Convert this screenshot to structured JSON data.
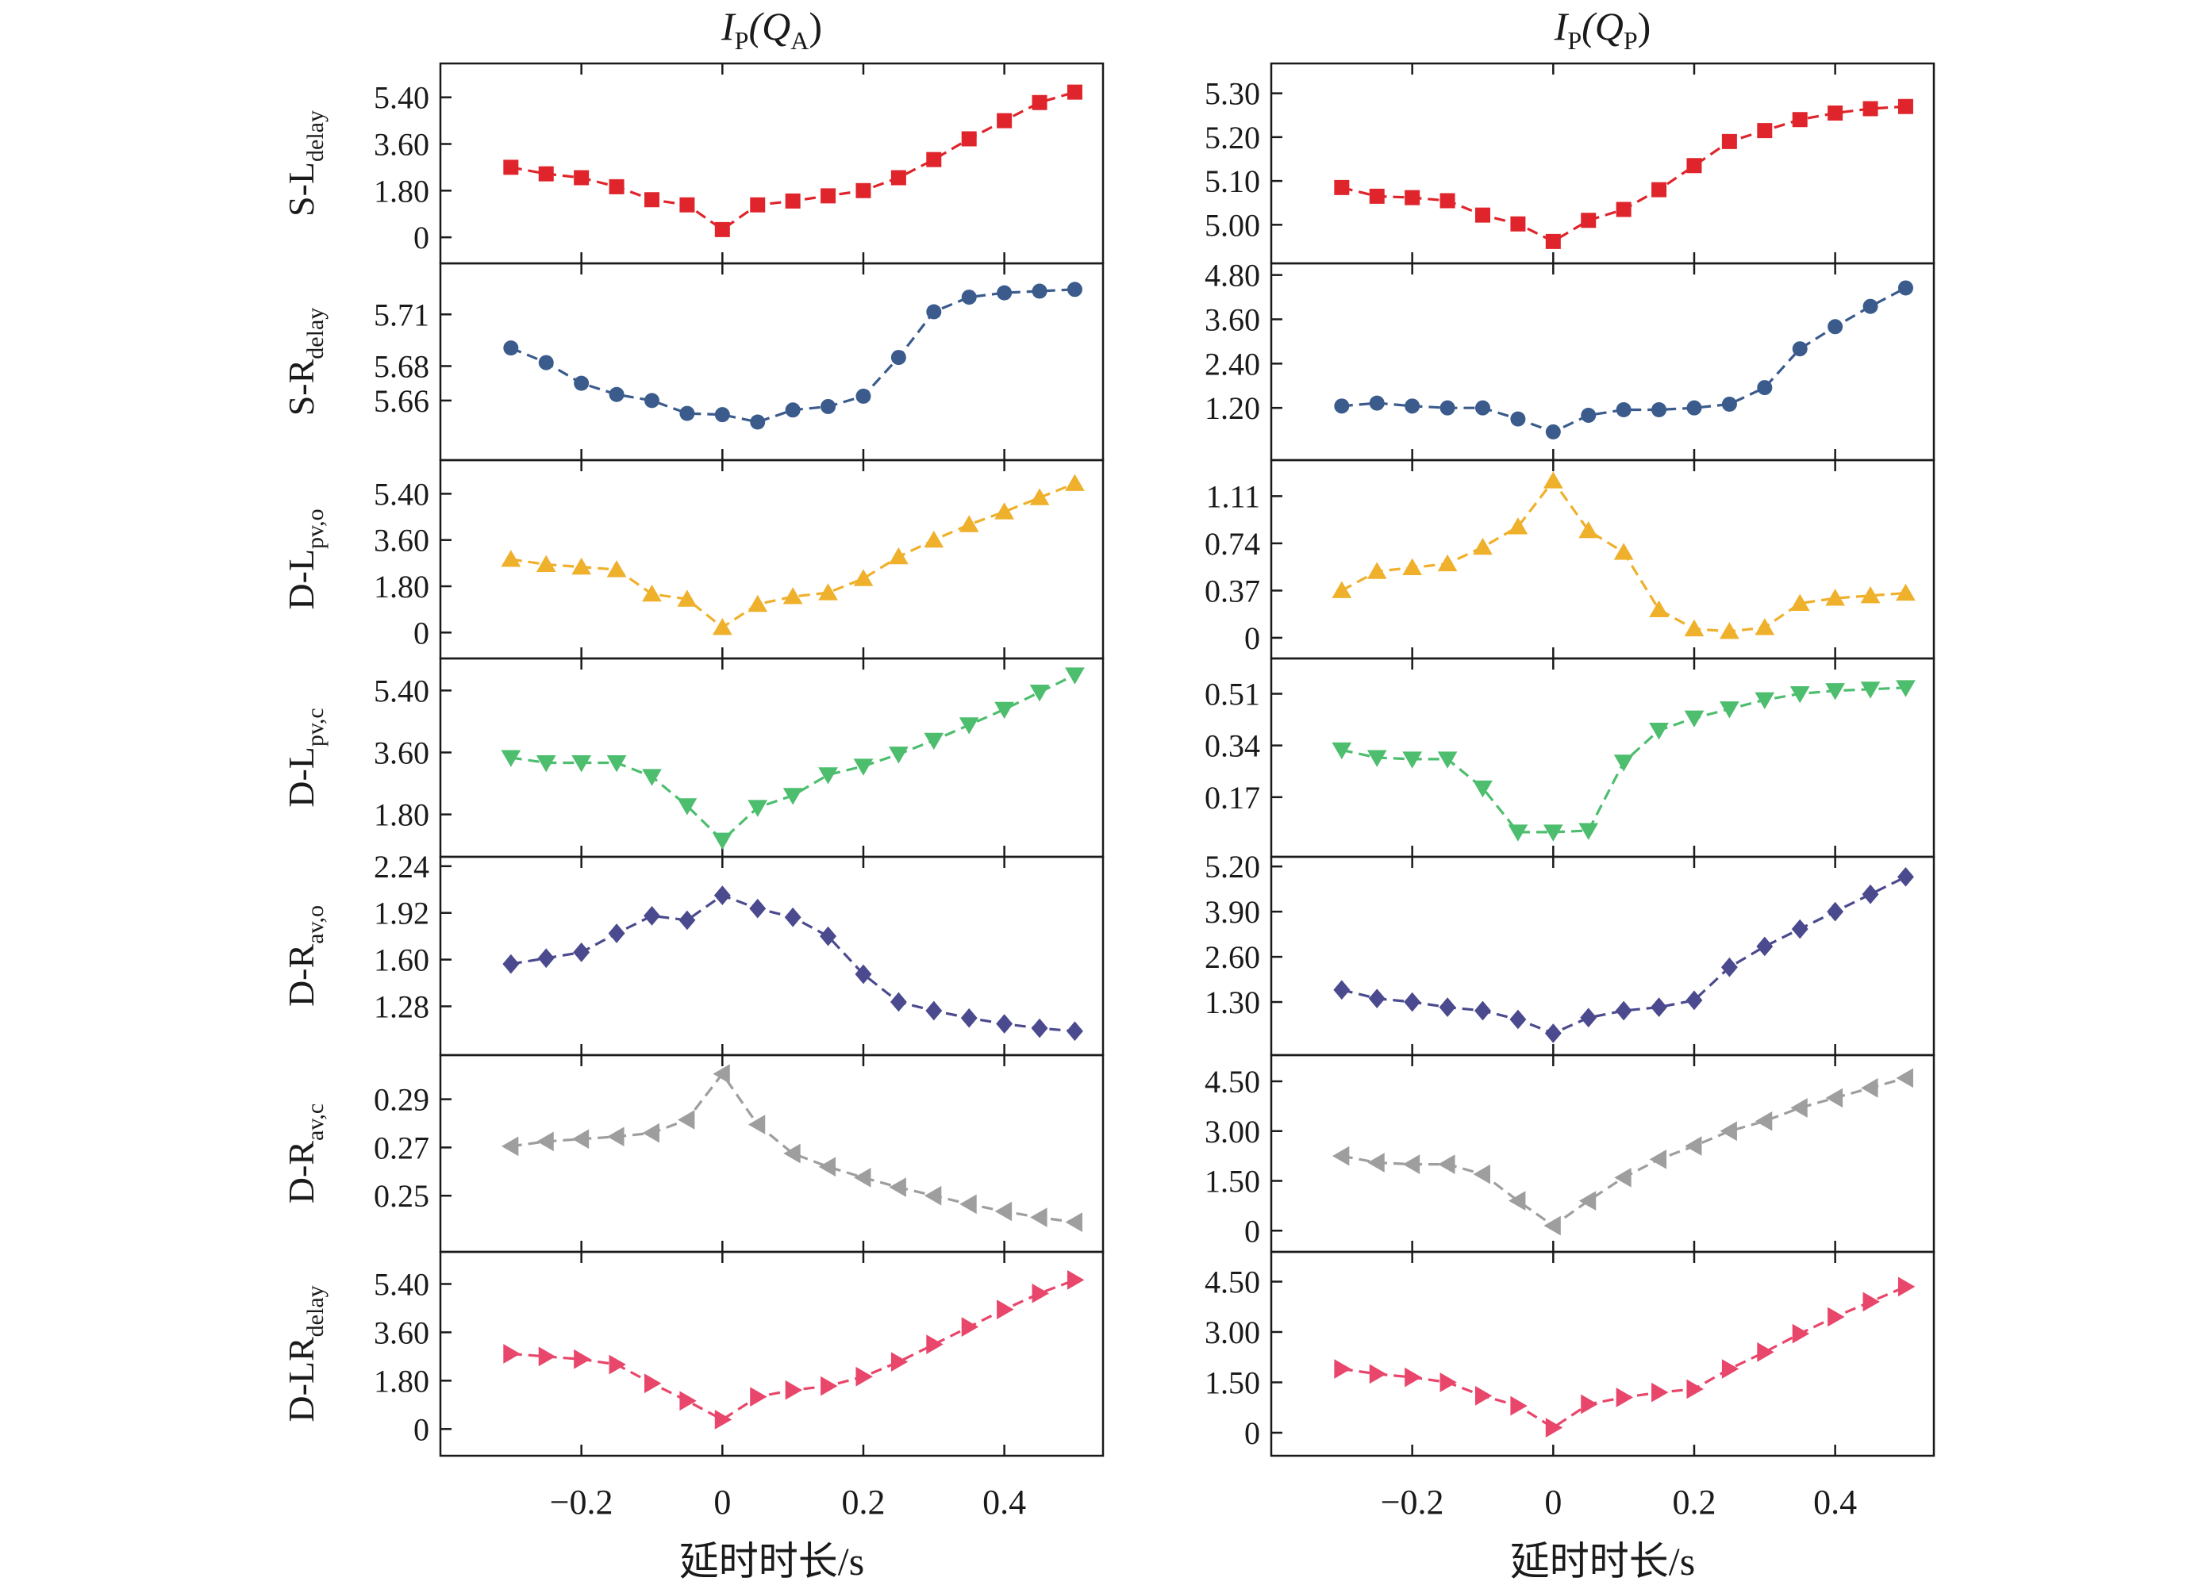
{
  "figure": {
    "columns": [
      {
        "title_main": "I",
        "title_sub": "P",
        "title_arg": "(Q",
        "title_arg_sub": "A",
        "title_close": ")"
      },
      {
        "title_main": "I",
        "title_sub": "P",
        "title_arg": "(Q",
        "title_arg_sub": "P",
        "title_close": ")"
      }
    ],
    "rows": [
      {
        "label": "S-L",
        "sub": "delay",
        "color": "#e0242b",
        "marker": "square"
      },
      {
        "label": "S-R",
        "sub": "delay",
        "color": "#3a5b8c",
        "marker": "circle"
      },
      {
        "label": "D-L",
        "sub": "pv,o",
        "color": "#efb02b",
        "marker": "triangle-up"
      },
      {
        "label": "D-L",
        "sub": "pv,c",
        "color": "#4dbd6e",
        "marker": "triangle-down"
      },
      {
        "label": "D-R",
        "sub": "av,o",
        "color": "#4b4a8e",
        "marker": "diamond"
      },
      {
        "label": "D-R",
        "sub": "av,c",
        "color": "#9e9e9e",
        "marker": "triangle-left"
      },
      {
        "label": "D-LR",
        "sub": "delay",
        "color": "#e8466a",
        "marker": "triangle-right"
      }
    ],
    "xlabel": "延时时长/s",
    "xticks": [
      "−0.2",
      "0",
      "0.2",
      "0.4"
    ]
  },
  "chart_data": [
    {
      "type": "line",
      "column": "IP(QA)",
      "row": "S-Ldelay",
      "x": [
        -0.3,
        -0.25,
        -0.2,
        -0.15,
        -0.1,
        -0.05,
        0,
        0.05,
        0.1,
        0.15,
        0.2,
        0.25,
        0.3,
        0.35,
        0.4,
        0.45,
        0.5
      ],
      "y": [
        2.7,
        2.45,
        2.3,
        1.95,
        1.45,
        1.25,
        0.3,
        1.25,
        1.4,
        1.6,
        1.8,
        2.3,
        3.0,
        3.8,
        4.5,
        5.2,
        5.6
      ],
      "yticks": [
        "0",
        "1.80",
        "3.60",
        "5.40"
      ],
      "ytick_values": [
        0,
        1.8,
        3.6,
        5.4
      ],
      "ylim": [
        -0.7,
        6.4
      ]
    },
    {
      "type": "line",
      "column": "IP(QP)",
      "row": "S-Ldelay",
      "x": [
        -0.3,
        -0.25,
        -0.2,
        -0.15,
        -0.1,
        -0.05,
        0,
        0.05,
        0.1,
        0.15,
        0.2,
        0.25,
        0.3,
        0.35,
        0.4,
        0.45,
        0.5
      ],
      "y": [
        5.085,
        5.065,
        5.062,
        5.055,
        5.022,
        5.002,
        4.962,
        5.01,
        5.035,
        5.08,
        5.135,
        5.19,
        5.215,
        5.24,
        5.255,
        5.265,
        5.27
      ],
      "yticks": [
        "5.00",
        "5.10",
        "5.20",
        "5.30"
      ],
      "ytick_values": [
        5.0,
        5.1,
        5.2,
        5.3
      ],
      "ylim": [
        4.93,
        5.35
      ]
    },
    {
      "type": "line",
      "column": "IP(QA)",
      "row": "S-Rdelay",
      "x": [
        -0.3,
        -0.25,
        -0.2,
        -0.15,
        -0.1,
        -0.05,
        0,
        0.05,
        0.1,
        0.15,
        0.2,
        0.25,
        0.3,
        0.35,
        0.4,
        0.45,
        0.5
      ],
      "y": [
        5.6905,
        5.682,
        5.67,
        5.6635,
        5.66,
        5.6525,
        5.6518,
        5.6475,
        5.6545,
        5.6565,
        5.6625,
        5.685,
        5.7115,
        5.72,
        5.7225,
        5.7235,
        5.7245
      ],
      "yticks": [
        "5.66",
        "5.68",
        "5.71"
      ],
      "ytick_values": [
        5.66,
        5.68,
        5.71
      ],
      "ylim": [
        5.63,
        5.735
      ]
    },
    {
      "type": "line",
      "column": "IP(QP)",
      "row": "S-Rdelay",
      "x": [
        -0.3,
        -0.25,
        -0.2,
        -0.15,
        -0.1,
        -0.05,
        0,
        0.05,
        0.1,
        0.15,
        0.2,
        0.25,
        0.3,
        0.35,
        0.4,
        0.45,
        0.5
      ],
      "y": [
        1.25,
        1.33,
        1.25,
        1.2,
        1.2,
        0.9,
        0.55,
        1.0,
        1.15,
        1.15,
        1.2,
        1.3,
        1.75,
        2.8,
        3.4,
        3.95,
        4.45
      ],
      "yticks": [
        "1.20",
        "2.40",
        "3.60",
        "4.80"
      ],
      "ytick_values": [
        1.2,
        2.4,
        3.6,
        4.8
      ],
      "ylim": [
        0,
        4.9
      ]
    },
    {
      "type": "line",
      "column": "IP(QA)",
      "row": "D-Lpv,o",
      "x": [
        -0.3,
        -0.25,
        -0.2,
        -0.15,
        -0.1,
        -0.05,
        0,
        0.05,
        0.1,
        0.15,
        0.2,
        0.25,
        0.3,
        0.35,
        0.4,
        0.45,
        0.5
      ],
      "y": [
        2.85,
        2.65,
        2.55,
        2.45,
        1.5,
        1.3,
        0.2,
        1.1,
        1.4,
        1.55,
        2.1,
        2.95,
        3.6,
        4.2,
        4.7,
        5.25,
        5.8
      ],
      "yticks": [
        "0",
        "1.80",
        "3.60",
        "5.40"
      ],
      "ytick_values": [
        0,
        1.8,
        3.6,
        5.4
      ],
      "ylim": [
        -0.7,
        6.4
      ]
    },
    {
      "type": "line",
      "column": "IP(QP)",
      "row": "D-Lpv,o",
      "x": [
        -0.3,
        -0.25,
        -0.2,
        -0.15,
        -0.1,
        -0.05,
        0,
        0.05,
        0.1,
        0.15,
        0.2,
        0.25,
        0.3,
        0.35,
        0.4,
        0.45,
        0.5
      ],
      "y": [
        0.37,
        0.52,
        0.55,
        0.58,
        0.71,
        0.87,
        1.23,
        0.84,
        0.67,
        0.22,
        0.07,
        0.05,
        0.08,
        0.27,
        0.31,
        0.33,
        0.35
      ],
      "yticks": [
        "0",
        "0.37",
        "0.74",
        "1.11"
      ],
      "ytick_values": [
        0,
        0.37,
        0.74,
        1.11
      ],
      "ylim": [
        -0.1,
        1.33
      ]
    },
    {
      "type": "line",
      "column": "IP(QA)",
      "row": "D-Lpv,c",
      "x": [
        -0.3,
        -0.25,
        -0.2,
        -0.15,
        -0.1,
        -0.05,
        0,
        0.05,
        0.1,
        0.15,
        0.2,
        0.25,
        0.3,
        0.35,
        0.4,
        0.45,
        0.5
      ],
      "y": [
        3.45,
        3.3,
        3.3,
        3.3,
        2.9,
        2.05,
        1.05,
        2.0,
        2.35,
        2.95,
        3.2,
        3.55,
        3.95,
        4.4,
        4.85,
        5.35,
        5.85
      ],
      "yticks": [
        "1.80",
        "3.60",
        "5.40"
      ],
      "ytick_values": [
        1.8,
        3.6,
        5.4
      ],
      "ylim": [
        0.8,
        6.1
      ]
    },
    {
      "type": "line",
      "column": "IP(QP)",
      "row": "D-Lpv,c",
      "x": [
        -0.3,
        -0.25,
        -0.2,
        -0.15,
        -0.1,
        -0.05,
        0,
        0.05,
        0.1,
        0.15,
        0.2,
        0.25,
        0.3,
        0.35,
        0.4,
        0.45,
        0.5
      ],
      "y": [
        0.325,
        0.3,
        0.295,
        0.295,
        0.2,
        0.055,
        0.055,
        0.06,
        0.285,
        0.39,
        0.43,
        0.46,
        0.49,
        0.51,
        0.52,
        0.525,
        0.53
      ],
      "yticks": [
        "0.17",
        "0.34",
        "0.51"
      ],
      "ytick_values": [
        0.17,
        0.34,
        0.51
      ],
      "ylim": [
        0,
        0.6
      ]
    },
    {
      "type": "line",
      "column": "IP(QA)",
      "row": "D-Rav,o",
      "x": [
        -0.3,
        -0.25,
        -0.2,
        -0.15,
        -0.1,
        -0.05,
        0,
        0.05,
        0.1,
        0.15,
        0.2,
        0.25,
        0.3,
        0.35,
        0.4,
        0.45,
        0.5
      ],
      "y": [
        1.57,
        1.61,
        1.65,
        1.78,
        1.9,
        1.87,
        2.04,
        1.95,
        1.89,
        1.76,
        1.5,
        1.31,
        1.25,
        1.2,
        1.16,
        1.13,
        1.11
      ],
      "yticks": [
        "1.28",
        "1.60",
        "1.92",
        "2.24"
      ],
      "ytick_values": [
        1.28,
        1.6,
        1.92,
        2.24
      ],
      "ylim": [
        1.0,
        2.25
      ]
    },
    {
      "type": "line",
      "column": "IP(QP)",
      "row": "D-Rav,o",
      "x": [
        -0.3,
        -0.25,
        -0.2,
        -0.15,
        -0.1,
        -0.05,
        0,
        0.05,
        0.1,
        0.15,
        0.2,
        0.25,
        0.3,
        0.35,
        0.4,
        0.45,
        0.5
      ],
      "y": [
        1.65,
        1.4,
        1.3,
        1.15,
        1.05,
        0.8,
        0.4,
        0.85,
        1.05,
        1.15,
        1.35,
        2.3,
        2.9,
        3.4,
        3.9,
        4.4,
        4.9
      ],
      "yticks": [
        "1.30",
        "2.60",
        "3.90",
        "5.20"
      ],
      "ytick_values": [
        1.3,
        2.6,
        3.9,
        5.2
      ],
      "ylim": [
        0,
        5.25
      ]
    },
    {
      "type": "line",
      "column": "IP(QA)",
      "row": "D-Rav,c",
      "x": [
        -0.3,
        -0.25,
        -0.2,
        -0.15,
        -0.1,
        -0.05,
        0,
        0.05,
        0.1,
        0.15,
        0.2,
        0.25,
        0.3,
        0.35,
        0.4,
        0.45,
        0.5
      ],
      "y": [
        0.2705,
        0.2725,
        0.2735,
        0.2745,
        0.276,
        0.2815,
        0.3005,
        0.2795,
        0.2675,
        0.262,
        0.2575,
        0.2535,
        0.25,
        0.2465,
        0.2435,
        0.241,
        0.239
      ],
      "yticks": [
        "0.25",
        "0.27",
        "0.29"
      ],
      "ytick_values": [
        0.25,
        0.27,
        0.29
      ],
      "ylim": [
        0.23,
        0.305
      ]
    },
    {
      "type": "line",
      "column": "IP(QP)",
      "row": "D-Rav,c",
      "x": [
        -0.3,
        -0.25,
        -0.2,
        -0.15,
        -0.1,
        -0.05,
        0,
        0.05,
        0.1,
        0.15,
        0.2,
        0.25,
        0.3,
        0.35,
        0.4,
        0.45,
        0.5
      ],
      "y": [
        2.25,
        2.05,
        2.0,
        2.0,
        1.7,
        0.9,
        0.15,
        0.9,
        1.6,
        2.15,
        2.55,
        3.0,
        3.3,
        3.7,
        4.0,
        4.3,
        4.6
      ],
      "yticks": [
        "0",
        "1.50",
        "3.00",
        "4.50"
      ],
      "ytick_values": [
        0,
        1.5,
        3.0,
        4.5
      ],
      "ylim": [
        -0.4,
        5.05
      ]
    },
    {
      "type": "line",
      "column": "IP(QA)",
      "row": "D-LRdelay",
      "x": [
        -0.3,
        -0.25,
        -0.2,
        -0.15,
        -0.1,
        -0.05,
        0,
        0.05,
        0.1,
        0.15,
        0.2,
        0.25,
        0.3,
        0.35,
        0.4,
        0.45,
        0.5
      ],
      "y": [
        2.8,
        2.7,
        2.6,
        2.4,
        1.7,
        1.05,
        0.35,
        1.2,
        1.45,
        1.6,
        1.95,
        2.5,
        3.15,
        3.8,
        4.45,
        5.05,
        5.55
      ],
      "yticks": [
        "0",
        "1.80",
        "3.60",
        "5.40"
      ],
      "ytick_values": [
        0,
        1.8,
        3.6,
        5.4
      ],
      "ylim": [
        -0.7,
        6.3
      ]
    },
    {
      "type": "line",
      "column": "IP(QP)",
      "row": "D-LRdelay",
      "x": [
        -0.3,
        -0.25,
        -0.2,
        -0.15,
        -0.1,
        -0.05,
        0,
        0.05,
        0.1,
        0.15,
        0.2,
        0.25,
        0.3,
        0.35,
        0.4,
        0.45,
        0.5
      ],
      "y": [
        1.9,
        1.75,
        1.65,
        1.5,
        1.1,
        0.8,
        0.15,
        0.85,
        1.05,
        1.2,
        1.3,
        1.9,
        2.4,
        2.95,
        3.45,
        3.9,
        4.35
      ],
      "yticks": [
        "0",
        "1.50",
        "3.00",
        "4.50"
      ],
      "ytick_values": [
        0,
        1.5,
        3.0,
        4.5
      ],
      "ylim": [
        -0.45,
        5.15
      ]
    }
  ]
}
